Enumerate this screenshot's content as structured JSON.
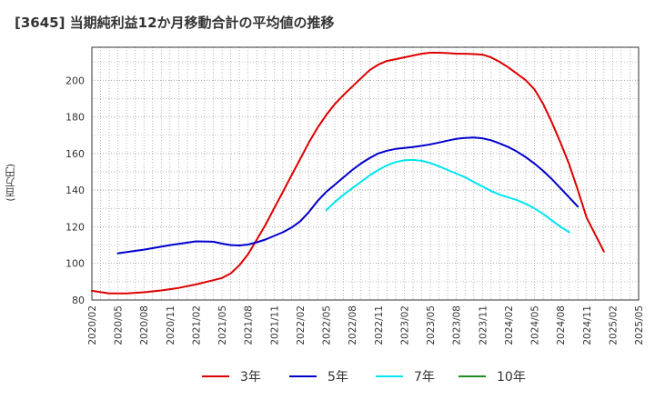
{
  "chart_data": {
    "type": "line",
    "title": "[3645]  当期純利益12か月移動合計の平均値の推移",
    "ylabel": "(百万円)",
    "xlabel": "",
    "ylim": [
      80,
      218
    ],
    "yticks": [
      80,
      100,
      120,
      140,
      160,
      180,
      200
    ],
    "xticks": [
      "2020/02",
      "2020/05",
      "2020/08",
      "2020/11",
      "2021/02",
      "2021/05",
      "2021/08",
      "2021/11",
      "2022/02",
      "2022/05",
      "2022/08",
      "2022/11",
      "2023/02",
      "2023/05",
      "2023/08",
      "2023/11",
      "2024/02",
      "2024/05",
      "2024/08",
      "2024/11",
      "2025/02",
      "2025/05"
    ],
    "grid": true,
    "legend_position": "bottom",
    "series": [
      {
        "name": "3年",
        "color": "#dd0000",
        "points": [
          [
            "2020/02",
            85
          ],
          [
            "2020/04",
            83.6
          ],
          [
            "2020/06",
            83.6
          ],
          [
            "2020/08",
            84.2
          ],
          [
            "2020/10",
            85.2
          ],
          [
            "2020/12",
            86.6
          ],
          [
            "2021/02",
            88.5
          ],
          [
            "2021/04",
            90.8
          ],
          [
            "2021/05",
            92
          ],
          [
            "2021/06",
            94.5
          ],
          [
            "2021/07",
            99
          ],
          [
            "2021/08",
            105
          ],
          [
            "2021/09",
            113
          ],
          [
            "2021/10",
            121
          ],
          [
            "2021/11",
            130
          ],
          [
            "2021/12",
            139
          ],
          [
            "2022/01",
            148
          ],
          [
            "2022/02",
            157
          ],
          [
            "2022/03",
            166
          ],
          [
            "2022/04",
            174
          ],
          [
            "2022/05",
            181
          ],
          [
            "2022/06",
            187
          ],
          [
            "2022/07",
            192
          ],
          [
            "2022/08",
            196.5
          ],
          [
            "2022/09",
            201
          ],
          [
            "2022/10",
            205.5
          ],
          [
            "2022/11",
            208.5
          ],
          [
            "2022/12",
            210.5
          ],
          [
            "2023/01",
            211.5
          ],
          [
            "2023/02",
            212.5
          ],
          [
            "2023/03",
            213.5
          ],
          [
            "2023/04",
            214.5
          ],
          [
            "2023/05",
            215
          ],
          [
            "2023/06",
            215
          ],
          [
            "2023/07",
            214.8
          ],
          [
            "2023/08",
            214.5
          ],
          [
            "2023/09",
            214.5
          ],
          [
            "2023/10",
            214.3
          ],
          [
            "2023/11",
            214
          ],
          [
            "2023/12",
            212.5
          ],
          [
            "2024/01",
            210
          ],
          [
            "2024/02",
            207
          ],
          [
            "2024/03",
            203.5
          ],
          [
            "2024/04",
            200
          ],
          [
            "2024/05",
            195
          ],
          [
            "2024/06",
            187
          ],
          [
            "2024/07",
            177
          ],
          [
            "2024/08",
            166
          ],
          [
            "2024/09",
            154
          ],
          [
            "2024/10",
            140
          ],
          [
            "2024/11",
            125
          ],
          [
            "2025/01",
            106.5
          ]
        ]
      },
      {
        "name": "5年",
        "color": "#0000cc",
        "points": [
          [
            "2020/05",
            105.5
          ],
          [
            "2020/08",
            107.5
          ],
          [
            "2020/11",
            110
          ],
          [
            "2021/02",
            112
          ],
          [
            "2021/04",
            111.8
          ],
          [
            "2021/05",
            110.8
          ],
          [
            "2021/06",
            110
          ],
          [
            "2021/07",
            109.8
          ],
          [
            "2021/08",
            110.3
          ],
          [
            "2021/09",
            111.5
          ],
          [
            "2021/10",
            113
          ],
          [
            "2021/11",
            115
          ],
          [
            "2021/12",
            117
          ],
          [
            "2022/01",
            119.5
          ],
          [
            "2022/02",
            123
          ],
          [
            "2022/03",
            128
          ],
          [
            "2022/04",
            134
          ],
          [
            "2022/05",
            139
          ],
          [
            "2022/06",
            143
          ],
          [
            "2022/07",
            147
          ],
          [
            "2022/08",
            151
          ],
          [
            "2022/09",
            154.5
          ],
          [
            "2022/10",
            157.5
          ],
          [
            "2022/11",
            160
          ],
          [
            "2022/12",
            161.5
          ],
          [
            "2023/01",
            162.5
          ],
          [
            "2023/02",
            163
          ],
          [
            "2023/03",
            163.5
          ],
          [
            "2023/04",
            164.2
          ],
          [
            "2023/05",
            165
          ],
          [
            "2023/06",
            166
          ],
          [
            "2023/07",
            167
          ],
          [
            "2023/08",
            168
          ],
          [
            "2023/09",
            168.5
          ],
          [
            "2023/10",
            168.7
          ],
          [
            "2023/11",
            168.3
          ],
          [
            "2023/12",
            167.2
          ],
          [
            "2024/01",
            165.5
          ],
          [
            "2024/02",
            163.5
          ],
          [
            "2024/03",
            161
          ],
          [
            "2024/04",
            158
          ],
          [
            "2024/05",
            154.5
          ],
          [
            "2024/06",
            150.5
          ],
          [
            "2024/07",
            146
          ],
          [
            "2024/08",
            141
          ],
          [
            "2024/09",
            136
          ],
          [
            "2024/10",
            131
          ]
        ]
      },
      {
        "name": "7年",
        "color": "#00e5ee",
        "points": [
          [
            "2022/05",
            129
          ],
          [
            "2022/06",
            133.5
          ],
          [
            "2022/07",
            137.5
          ],
          [
            "2022/08",
            141
          ],
          [
            "2022/09",
            144.5
          ],
          [
            "2022/10",
            148
          ],
          [
            "2022/11",
            151
          ],
          [
            "2022/12",
            153.5
          ],
          [
            "2023/01",
            155.3
          ],
          [
            "2023/02",
            156.3
          ],
          [
            "2023/03",
            156.5
          ],
          [
            "2023/04",
            156
          ],
          [
            "2023/05",
            154.8
          ],
          [
            "2023/06",
            153
          ],
          [
            "2023/07",
            151
          ],
          [
            "2023/08",
            149
          ],
          [
            "2023/09",
            147
          ],
          [
            "2023/10",
            144.5
          ],
          [
            "2023/11",
            142
          ],
          [
            "2023/12",
            139.5
          ],
          [
            "2024/01",
            137.5
          ],
          [
            "2024/02",
            136
          ],
          [
            "2024/03",
            134.5
          ],
          [
            "2024/04",
            132.5
          ],
          [
            "2024/05",
            130
          ],
          [
            "2024/06",
            127
          ],
          [
            "2024/07",
            123.5
          ],
          [
            "2024/08",
            120
          ],
          [
            "2024/09",
            117
          ]
        ]
      },
      {
        "name": "10年",
        "color": "#228b22",
        "points": []
      }
    ]
  }
}
